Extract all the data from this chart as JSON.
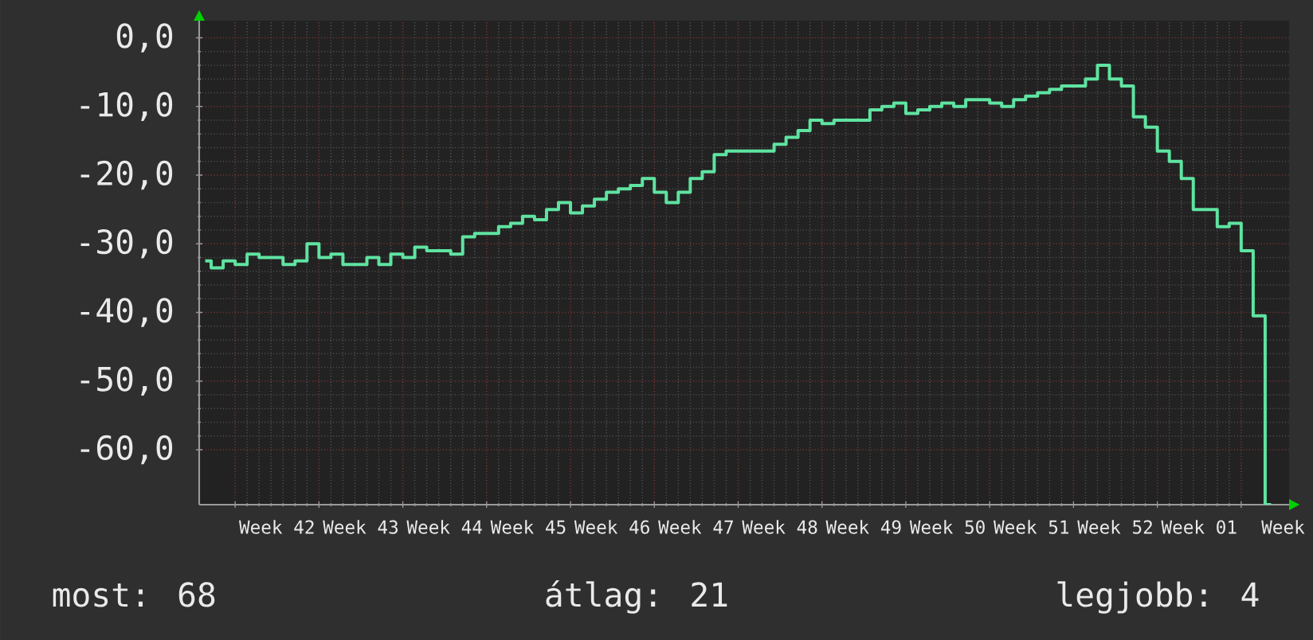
{
  "chart_data": {
    "type": "step",
    "color": "#5fe3a1",
    "grid": true,
    "categories": [
      null,
      null,
      null,
      null,
      null,
      null,
      "Week 42",
      null,
      null,
      null,
      null,
      null,
      null,
      "Week 43",
      null,
      null,
      null,
      null,
      null,
      null,
      "Week 44",
      null,
      null,
      null,
      null,
      null,
      null,
      "Week 45",
      null,
      null,
      null,
      null,
      null,
      null,
      "Week 46",
      null,
      null,
      null,
      null,
      null,
      null,
      "Week 47",
      null,
      null,
      null,
      null,
      null,
      null,
      "Week 48",
      null,
      null,
      null,
      null,
      null,
      null,
      "Week 49",
      null,
      null,
      null,
      null,
      null,
      null,
      "Week 50",
      null,
      null,
      null,
      null,
      null,
      null,
      "Week 51",
      null,
      null,
      null,
      null,
      null,
      null,
      "Week 52",
      null,
      null,
      null,
      null,
      null,
      null,
      "Week 01",
      null,
      null,
      null,
      null,
      null,
      null,
      "Week"
    ],
    "values": [
      -32.5,
      -33.5,
      -32.5,
      -33,
      -31.5,
      -32,
      -32,
      -33,
      -32.5,
      -30,
      -32,
      -31.5,
      -33,
      -33,
      -32,
      -33,
      -31.5,
      -32,
      -30.5,
      -31,
      -31,
      -31.5,
      -29,
      -28.5,
      -28.5,
      -27.5,
      -27,
      -26,
      -26.5,
      -25,
      -24,
      -25.5,
      -24.5,
      -23.5,
      -22.5,
      -22,
      -21.5,
      -20.5,
      -22.5,
      -24,
      -22.5,
      -20.5,
      -19.5,
      -17,
      -16.5,
      -16.5,
      -16.5,
      -16.5,
      -15.5,
      -14.5,
      -13.5,
      -12,
      -12.5,
      -12,
      -12,
      -12,
      -10.5,
      -10,
      -9.5,
      -11,
      -10.5,
      -10,
      -9.5,
      -10,
      -9,
      -9,
      -9.5,
      -10,
      -9,
      -8.5,
      -8,
      -7.5,
      -7,
      -7,
      -6,
      -4,
      -6,
      -7,
      -11.5,
      -13,
      -16.5,
      -18,
      -20.5,
      -25,
      -25,
      -27.5,
      -27,
      -31,
      -40.5,
      -68,
      null
    ],
    "ylim": [
      -68,
      2.5
    ],
    "yticks": [
      {
        "value": 0,
        "label": "0,0"
      },
      {
        "value": -10,
        "label": "-10,0"
      },
      {
        "value": -20,
        "label": "-20,0"
      },
      {
        "value": -30,
        "label": "-30,0"
      },
      {
        "value": -40,
        "label": "-40,0"
      },
      {
        "value": -50,
        "label": "-50,0"
      },
      {
        "value": -60,
        "label": "-60,0"
      }
    ],
    "annotations": [
      "most: 68",
      "átlag: 21",
      "legjobb: 4"
    ]
  }
}
